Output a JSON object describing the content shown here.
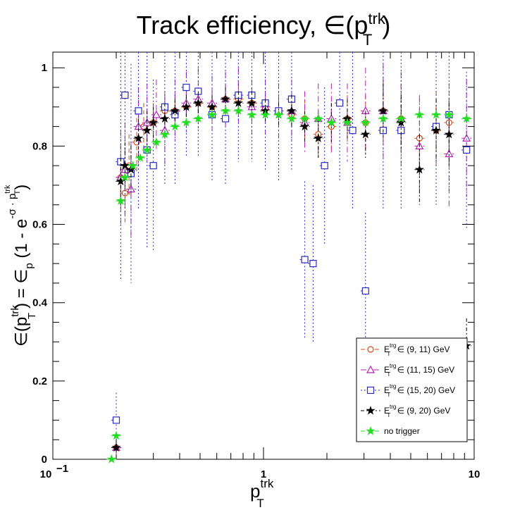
{
  "chart_data": {
    "type": "scatter",
    "title": {
      "main": "Track efficiency, ∈(p",
      "sup": "trk",
      "sub": "T",
      "close": ")"
    },
    "xlabel": {
      "main": "p",
      "sup": "trk",
      "sub": "T"
    },
    "ylabel": {
      "main": "∈(p",
      "sup1": "trk",
      "sub1": "T",
      "mid": ") = ∈",
      "sub2": "p",
      "mid2": " (1 - e",
      "sup2": "-σ · p",
      "sup3": "trk",
      "sub3": "T",
      "close": ")"
    },
    "x_scale": "log",
    "xlim": [
      0.1,
      10
    ],
    "ylim": [
      0,
      1.04
    ],
    "x_ticks": [
      {
        "v": 0.1,
        "label": "10",
        "exp": "−1"
      },
      {
        "v": 1,
        "label": "1",
        "exp": ""
      },
      {
        "v": 10,
        "label": "10",
        "exp": ""
      }
    ],
    "y_ticks": [
      {
        "v": 0,
        "label": "0"
      },
      {
        "v": 0.2,
        "label": "0.2"
      },
      {
        "v": 0.4,
        "label": "0.4"
      },
      {
        "v": 0.6,
        "label": "0.6"
      },
      {
        "v": 0.8,
        "label": "0.8"
      },
      {
        "v": 1.0,
        "label": "1"
      }
    ],
    "grid": false,
    "legend_position": "bottom-right",
    "series": [
      {
        "name": "E",
        "name_sup": "trg",
        "name_sub": "T",
        "name_rest": " ∈ (9, 11) GeV",
        "color": "#d24b14",
        "marker": "circle-open",
        "dash": "6,4",
        "points": [
          [
            0.2,
            0.03,
            0.01
          ],
          [
            0.21,
            0.72,
            0.08
          ],
          [
            0.22,
            0.68,
            0.08
          ],
          [
            0.23,
            0.75,
            0.08
          ],
          [
            0.25,
            0.81,
            0.08
          ],
          [
            0.27,
            0.85,
            0.06
          ],
          [
            0.3,
            0.86,
            0.05
          ],
          [
            0.34,
            0.89,
            0.05
          ],
          [
            0.38,
            0.89,
            0.04
          ],
          [
            0.43,
            0.9,
            0.04
          ],
          [
            0.49,
            0.91,
            0.04
          ],
          [
            0.57,
            0.9,
            0.04
          ],
          [
            0.66,
            0.92,
            0.04
          ],
          [
            0.76,
            0.92,
            0.04
          ],
          [
            0.88,
            0.91,
            0.04
          ],
          [
            1.02,
            0.9,
            0.04
          ],
          [
            1.18,
            0.89,
            0.04
          ],
          [
            1.36,
            0.88,
            0.05
          ],
          [
            1.57,
            0.87,
            0.05
          ],
          [
            1.82,
            0.83,
            0.06
          ],
          [
            2.1,
            0.85,
            0.06
          ],
          [
            2.5,
            0.87,
            0.06
          ],
          [
            3.05,
            0.86,
            0.07
          ],
          [
            3.7,
            0.89,
            0.08
          ],
          [
            4.5,
            0.87,
            0.09
          ],
          [
            5.5,
            0.82,
            0.1
          ],
          [
            6.6,
            0.84,
            0.1
          ],
          [
            7.6,
            0.86,
            0.1
          ]
        ]
      },
      {
        "name": "E",
        "name_sup": "trg",
        "name_sub": "T",
        "name_rest": " ∈ (11, 15) GeV",
        "color": "#b41eb4",
        "marker": "triangle-open",
        "dash": "8,4,2,4",
        "points": [
          [
            0.2,
            0.03,
            0.02
          ],
          [
            0.21,
            0.72,
            0.12
          ],
          [
            0.22,
            0.74,
            0.12
          ],
          [
            0.235,
            0.69,
            0.12
          ],
          [
            0.255,
            0.85,
            0.1
          ],
          [
            0.28,
            0.86,
            0.1
          ],
          [
            0.31,
            0.88,
            0.09
          ],
          [
            0.34,
            0.84,
            0.09
          ],
          [
            0.38,
            0.89,
            0.08
          ],
          [
            0.43,
            0.91,
            0.08
          ],
          [
            0.49,
            0.92,
            0.08
          ],
          [
            0.57,
            0.91,
            0.07
          ],
          [
            0.66,
            0.92,
            0.07
          ],
          [
            0.76,
            0.93,
            0.07
          ],
          [
            0.88,
            0.9,
            0.07
          ],
          [
            1.02,
            0.9,
            0.07
          ],
          [
            1.18,
            0.89,
            0.07
          ],
          [
            1.36,
            0.89,
            0.08
          ],
          [
            1.57,
            0.86,
            0.08
          ],
          [
            1.82,
            0.87,
            0.09
          ],
          [
            2.1,
            0.87,
            0.09
          ],
          [
            2.5,
            0.86,
            0.1
          ],
          [
            3.05,
            0.89,
            0.11
          ],
          [
            3.7,
            0.89,
            0.12
          ],
          [
            4.5,
            0.87,
            0.12
          ],
          [
            5.5,
            0.8,
            0.13
          ],
          [
            7.6,
            0.78,
            0.14
          ],
          [
            9.2,
            0.82,
            0.15
          ]
        ]
      },
      {
        "name": "E",
        "name_sup": "trg",
        "name_sub": "T",
        "name_rest": " ∈ (15, 20) GeV",
        "color": "#2b2bbe",
        "marker": "square-open",
        "dash": "2,3",
        "points": [
          [
            0.2,
            0.1,
            0.07
          ],
          [
            0.21,
            0.76,
            0.3
          ],
          [
            0.22,
            0.93,
            0.3
          ],
          [
            0.235,
            0.73,
            0.28
          ],
          [
            0.255,
            0.89,
            0.25
          ],
          [
            0.28,
            0.79,
            0.25
          ],
          [
            0.3,
            0.75,
            0.22
          ],
          [
            0.34,
            0.9,
            0.2
          ],
          [
            0.38,
            0.88,
            0.18
          ],
          [
            0.43,
            0.95,
            0.18
          ],
          [
            0.49,
            0.94,
            0.17
          ],
          [
            0.57,
            0.88,
            0.17
          ],
          [
            0.66,
            0.87,
            0.17
          ],
          [
            0.76,
            0.93,
            0.17
          ],
          [
            0.88,
            0.93,
            0.17
          ],
          [
            1.02,
            0.91,
            0.17
          ],
          [
            1.18,
            0.89,
            0.18
          ],
          [
            1.36,
            0.92,
            0.18
          ],
          [
            1.57,
            0.51,
            0.2
          ],
          [
            1.72,
            0.5,
            0.2
          ],
          [
            1.95,
            0.75,
            0.2
          ],
          [
            2.3,
            0.91,
            0.2
          ],
          [
            2.65,
            0.84,
            0.2
          ],
          [
            3.05,
            0.43,
            0.2
          ],
          [
            3.7,
            0.84,
            0.2
          ],
          [
            4.5,
            0.84,
            0.2
          ],
          [
            6.6,
            0.85,
            0.2
          ],
          [
            7.6,
            0.88,
            0.2
          ],
          [
            9.2,
            0.79,
            0.2
          ]
        ]
      },
      {
        "name": "E",
        "name_sup": "trg",
        "name_sub": "T",
        "name_rest": " ∈ (9, 20) GeV",
        "color": "#000000",
        "marker": "star",
        "dash": "5,3,2,3",
        "points": [
          [
            0.2,
            0.03,
            0.02
          ],
          [
            0.21,
            0.71,
            0.06
          ],
          [
            0.22,
            0.75,
            0.06
          ],
          [
            0.235,
            0.74,
            0.06
          ],
          [
            0.255,
            0.82,
            0.05
          ],
          [
            0.28,
            0.84,
            0.05
          ],
          [
            0.3,
            0.86,
            0.04
          ],
          [
            0.34,
            0.87,
            0.04
          ],
          [
            0.38,
            0.89,
            0.03
          ],
          [
            0.43,
            0.9,
            0.03
          ],
          [
            0.49,
            0.91,
            0.03
          ],
          [
            0.57,
            0.9,
            0.03
          ],
          [
            0.66,
            0.92,
            0.03
          ],
          [
            0.76,
            0.91,
            0.03
          ],
          [
            0.88,
            0.91,
            0.03
          ],
          [
            1.02,
            0.89,
            0.03
          ],
          [
            1.18,
            0.88,
            0.03
          ],
          [
            1.36,
            0.89,
            0.04
          ],
          [
            1.57,
            0.85,
            0.04
          ],
          [
            1.82,
            0.82,
            0.05
          ],
          [
            2.1,
            0.86,
            0.05
          ],
          [
            2.5,
            0.87,
            0.05
          ],
          [
            3.05,
            0.83,
            0.06
          ],
          [
            3.7,
            0.89,
            0.07
          ],
          [
            4.5,
            0.86,
            0.07
          ],
          [
            5.5,
            0.74,
            0.09
          ],
          [
            6.6,
            0.84,
            0.08
          ],
          [
            7.6,
            0.83,
            0.08
          ],
          [
            9.2,
            0.29,
            0.07
          ]
        ]
      },
      {
        "name": "no trigger",
        "name_sup": "",
        "name_sub": "",
        "name_rest": "",
        "color": "#22dd22",
        "marker": "star",
        "dash": "6,4",
        "points": [
          [
            0.19,
            0.0,
            0.005
          ],
          [
            0.2,
            0.06,
            0.005
          ],
          [
            0.21,
            0.66,
            0.01
          ],
          [
            0.22,
            0.72,
            0.01
          ],
          [
            0.24,
            0.75,
            0.01
          ],
          [
            0.26,
            0.77,
            0.01
          ],
          [
            0.28,
            0.79,
            0.01
          ],
          [
            0.31,
            0.81,
            0.01
          ],
          [
            0.34,
            0.83,
            0.01
          ],
          [
            0.38,
            0.85,
            0.01
          ],
          [
            0.43,
            0.86,
            0.01
          ],
          [
            0.49,
            0.87,
            0.01
          ],
          [
            0.57,
            0.88,
            0.01
          ],
          [
            0.66,
            0.89,
            0.01
          ],
          [
            0.76,
            0.89,
            0.01
          ],
          [
            0.88,
            0.88,
            0.01
          ],
          [
            1.02,
            0.88,
            0.01
          ],
          [
            1.18,
            0.88,
            0.01
          ],
          [
            1.36,
            0.87,
            0.01
          ],
          [
            1.57,
            0.87,
            0.01
          ],
          [
            1.82,
            0.87,
            0.01
          ],
          [
            2.1,
            0.86,
            0.01
          ],
          [
            2.5,
            0.86,
            0.01
          ],
          [
            3.05,
            0.86,
            0.01
          ],
          [
            3.7,
            0.87,
            0.01
          ],
          [
            4.5,
            0.87,
            0.01
          ],
          [
            5.5,
            0.88,
            0.01
          ],
          [
            6.6,
            0.88,
            0.01
          ],
          [
            7.6,
            0.88,
            0.01
          ],
          [
            9.2,
            0.87,
            0.01
          ]
        ]
      }
    ]
  }
}
